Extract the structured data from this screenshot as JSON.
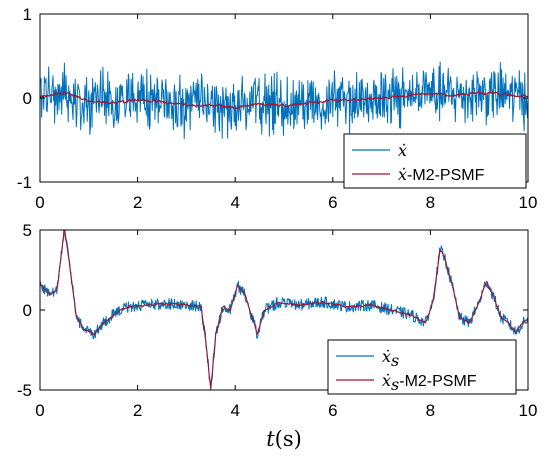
{
  "chart_data": [
    {
      "type": "line",
      "xlabel": "",
      "ylabel": "",
      "xlim": [
        0,
        10
      ],
      "ylim": [
        -1,
        1
      ],
      "x_ticks": [
        0,
        2,
        4,
        6,
        8,
        10
      ],
      "x_tick_labels": [
        "0",
        "2",
        "4",
        "6",
        "8",
        "10"
      ],
      "y_ticks": [
        1,
        0,
        -1
      ],
      "y_tick_labels": [
        "1",
        "0",
        "-1"
      ],
      "legend_position": "bottom-right",
      "series": [
        {
          "name": "ẋ",
          "legend_symbol": "ẋ",
          "legend_suffix": "",
          "color": "#0072BD",
          "noise_amplitude": 0.25,
          "note_values": "high-frequency noisy signal around the trend",
          "trend": {
            "x": [
              0,
              0.5,
              1,
              1.5,
              2,
              2.5,
              3,
              3.5,
              4,
              4.5,
              5,
              5.5,
              6,
              6.5,
              7,
              7.5,
              8,
              8.5,
              9,
              9.5,
              10
            ],
            "y": [
              0.02,
              0.06,
              -0.03,
              -0.06,
              -0.02,
              -0.05,
              -0.08,
              -0.09,
              -0.11,
              -0.07,
              -0.09,
              -0.06,
              -0.03,
              -0.02,
              0.0,
              0.02,
              0.05,
              0.03,
              0.06,
              0.04,
              0.02
            ]
          }
        },
        {
          "name": "ẋ-M2-PSMF",
          "legend_symbol": "ẋ",
          "legend_suffix": "-M2-PSMF",
          "color": "#A2142F",
          "noise_amplitude": 0.03,
          "trend": {
            "x": [
              0,
              0.5,
              1,
              1.5,
              2,
              2.5,
              3,
              3.5,
              4,
              4.5,
              5,
              5.5,
              6,
              6.5,
              7,
              7.5,
              8,
              8.5,
              9,
              9.5,
              10
            ],
            "y": [
              0.02,
              0.06,
              -0.03,
              -0.06,
              -0.02,
              -0.05,
              -0.08,
              -0.09,
              -0.11,
              -0.07,
              -0.09,
              -0.06,
              -0.03,
              -0.02,
              0.0,
              0.02,
              0.05,
              0.03,
              0.06,
              0.04,
              0.02
            ]
          }
        }
      ]
    },
    {
      "type": "line",
      "xlabel": "t(s)",
      "xlabel_var": "t",
      "xlabel_unit": "(s)",
      "ylabel": "",
      "xlim": [
        0,
        10
      ],
      "ylim": [
        -5,
        5
      ],
      "x_ticks": [
        0,
        2,
        4,
        6,
        8,
        10
      ],
      "x_tick_labels": [
        "0",
        "2",
        "4",
        "6",
        "8",
        "10"
      ],
      "y_ticks": [
        5,
        0,
        -5
      ],
      "y_tick_labels": [
        "5",
        "0",
        "-5"
      ],
      "legend_position": "bottom-right",
      "series": [
        {
          "name": "ẋs",
          "legend_symbol": "ẋ",
          "legend_subscript": "s",
          "legend_suffix": "",
          "color": "#0072BD",
          "noise_amplitude": 0.35,
          "trend": {
            "x": [
              0,
              0.2,
              0.35,
              0.5,
              0.6,
              0.75,
              0.9,
              1.1,
              1.3,
              1.5,
              1.8,
              2.2,
              2.6,
              3.0,
              3.3,
              3.4,
              3.5,
              3.6,
              3.75,
              3.9,
              4.05,
              4.2,
              4.35,
              4.45,
              4.6,
              4.9,
              5.3,
              5.8,
              6.3,
              6.8,
              7.2,
              7.6,
              7.9,
              8.05,
              8.2,
              8.3,
              8.45,
              8.6,
              8.8,
              9.0,
              9.15,
              9.3,
              9.45,
              9.6,
              9.75,
              9.9,
              10.0
            ],
            "y": [
              1.6,
              1.0,
              1.2,
              5.2,
              3.0,
              -0.5,
              -1.2,
              -1.5,
              -0.8,
              -0.3,
              0.2,
              0.3,
              0.4,
              0.3,
              0.2,
              -2.0,
              -5.0,
              -1.5,
              0.2,
              0.0,
              1.5,
              1.0,
              -0.5,
              -1.5,
              0.0,
              0.5,
              0.3,
              0.5,
              0.2,
              0.3,
              0.0,
              -0.3,
              -0.8,
              0.5,
              3.8,
              3.2,
              1.5,
              -0.5,
              -0.8,
              0.5,
              1.8,
              0.8,
              -0.5,
              -0.8,
              -1.4,
              -0.8,
              -0.6
            ]
          }
        },
        {
          "name": "ẋs-M2-PSMF",
          "legend_symbol": "ẋ",
          "legend_subscript": "s",
          "legend_suffix": "-M2-PSMF",
          "color": "#A2142F",
          "noise_amplitude": 0.12,
          "trend": {
            "x": [
              0,
              0.2,
              0.35,
              0.5,
              0.6,
              0.75,
              0.9,
              1.1,
              1.3,
              1.5,
              1.8,
              2.2,
              2.6,
              3.0,
              3.3,
              3.4,
              3.5,
              3.6,
              3.75,
              3.9,
              4.05,
              4.2,
              4.35,
              4.45,
              4.6,
              4.9,
              5.3,
              5.8,
              6.3,
              6.8,
              7.2,
              7.6,
              7.9,
              8.05,
              8.2,
              8.3,
              8.45,
              8.6,
              8.8,
              9.0,
              9.15,
              9.3,
              9.45,
              9.6,
              9.75,
              9.9,
              10.0
            ],
            "y": [
              1.6,
              1.0,
              1.2,
              5.2,
              3.0,
              -0.5,
              -1.2,
              -1.5,
              -0.8,
              -0.3,
              0.2,
              0.3,
              0.4,
              0.3,
              0.2,
              -2.0,
              -5.0,
              -1.5,
              0.2,
              0.0,
              1.5,
              1.0,
              -0.5,
              -1.5,
              0.0,
              0.5,
              0.3,
              0.5,
              0.2,
              0.3,
              0.0,
              -0.3,
              -0.8,
              0.5,
              3.8,
              3.2,
              1.5,
              -0.5,
              -0.8,
              0.5,
              1.8,
              0.8,
              -0.5,
              -0.8,
              -1.4,
              -0.8,
              -0.6
            ]
          }
        }
      ]
    }
  ]
}
